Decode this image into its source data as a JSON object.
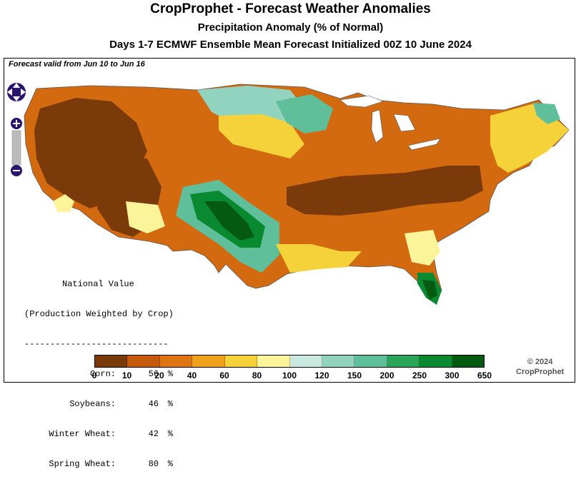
{
  "header": {
    "title": "CropProphet - Forecast Weather Anomalies",
    "subtitle": "Precipitation Anomaly (% of Normal)",
    "forecast_line": "Days 1-7 ECMWF Ensemble Mean Forecast Initialized 00Z 10 June 2024"
  },
  "map": {
    "valid_text": "Forecast valid from Jun 10 to Jun 16"
  },
  "national": {
    "title1": "National Value",
    "title2": "(Production Weighted by Crop)",
    "rule": "----------------------------",
    "unit": "%",
    "rows": [
      {
        "label": "Corn:",
        "value": "56"
      },
      {
        "label": "Soybeans:",
        "value": "46"
      },
      {
        "label": "Winter Wheat:",
        "value": "42"
      },
      {
        "label": "Spring Wheat:",
        "value": "80"
      }
    ]
  },
  "legend": {
    "colors": [
      "#7a3a0a",
      "#c45a0c",
      "#de7512",
      "#f0a11c",
      "#f6d23a",
      "#fcf49a",
      "#c8e8e0",
      "#92d3c0",
      "#5fbf9a",
      "#2aa457",
      "#0a8a30",
      "#045a10"
    ],
    "ticks": [
      "0",
      "10",
      "20",
      "40",
      "60",
      "80",
      "100",
      "120",
      "150",
      "200",
      "250",
      "300",
      "650"
    ]
  },
  "copyright": {
    "line1": "© 2024",
    "line2": "CropProphet"
  },
  "nav": {
    "pan_icon": "pan-arrows-icon",
    "zoom_in_icon": "plus-icon",
    "zoom_out_icon": "minus-icon"
  }
}
